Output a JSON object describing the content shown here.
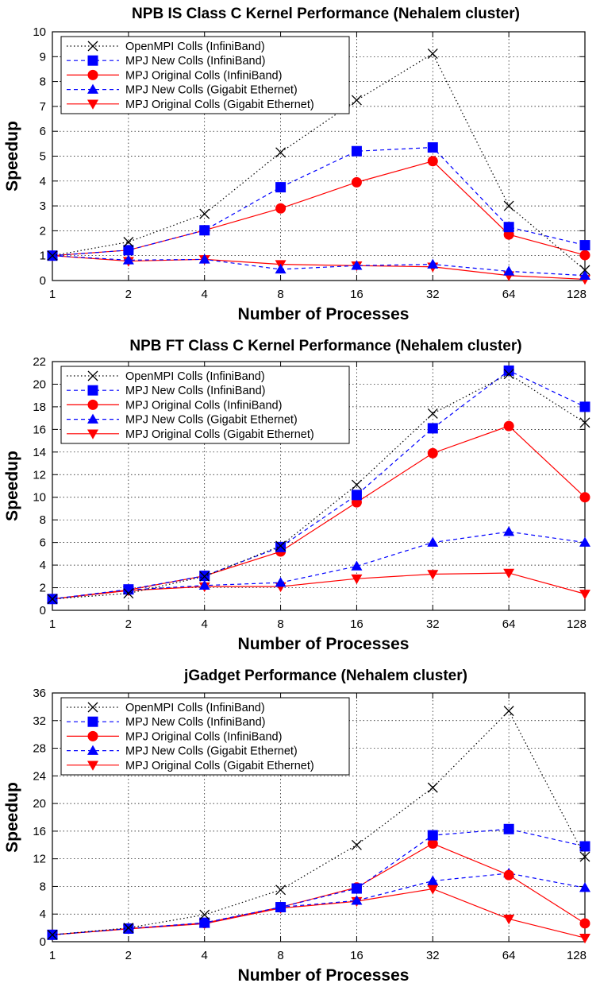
{
  "chart_data": [
    {
      "type": "line",
      "title": "NPB IS Class C Kernel Performance (Nehalem cluster)",
      "xlabel": "Number of Processes",
      "ylabel": "Speedup",
      "x_scale": "log2",
      "x": [
        1,
        2,
        4,
        8,
        16,
        32,
        64,
        128
      ],
      "ylim": [
        0,
        10
      ],
      "yticks": [
        0,
        1,
        2,
        3,
        4,
        5,
        6,
        7,
        8,
        9,
        10
      ],
      "grid": true,
      "legend_position": "top-left",
      "series": [
        {
          "name": "OpenMPI Colls (InfiniBand)",
          "values": [
            1,
            1.55,
            2.68,
            5.15,
            7.25,
            9.12,
            3.0,
            0.42
          ]
        },
        {
          "name": "MPJ New Colls (InfiniBand)",
          "values": [
            1,
            1.22,
            2.02,
            3.75,
            5.2,
            5.35,
            2.15,
            1.42
          ]
        },
        {
          "name": "MPJ Original Colls (InfiniBand)",
          "values": [
            1,
            1.22,
            2.02,
            2.9,
            3.95,
            4.8,
            1.85,
            1.02
          ]
        },
        {
          "name": "MPJ New Colls (Gigabit Ethernet)",
          "values": [
            1,
            0.82,
            0.85,
            0.45,
            0.6,
            0.65,
            0.37,
            0.2
          ]
        },
        {
          "name": "MPJ Original Colls (Gigabit Ethernet)",
          "values": [
            1,
            0.78,
            0.85,
            0.65,
            0.6,
            0.55,
            0.2,
            0.05
          ]
        }
      ]
    },
    {
      "type": "line",
      "title": "NPB FT Class C Kernel Performance (Nehalem cluster)",
      "xlabel": "Number of Processes",
      "ylabel": "Speedup",
      "x_scale": "log2",
      "x": [
        1,
        2,
        4,
        8,
        16,
        32,
        64,
        128
      ],
      "ylim": [
        0,
        22
      ],
      "yticks": [
        0,
        2,
        4,
        6,
        8,
        10,
        12,
        14,
        16,
        18,
        20,
        22
      ],
      "grid": true,
      "legend_position": "top-left",
      "series": [
        {
          "name": "OpenMPI Colls (InfiniBand)",
          "values": [
            1,
            1.5,
            3.0,
            5.7,
            11.1,
            17.4,
            20.9,
            16.6
          ]
        },
        {
          "name": "MPJ New Colls (InfiniBand)",
          "values": [
            1,
            1.85,
            3.05,
            5.6,
            10.2,
            16.1,
            21.2,
            18.0
          ]
        },
        {
          "name": "MPJ Original Colls (InfiniBand)",
          "values": [
            1,
            1.8,
            3.05,
            5.2,
            9.55,
            13.9,
            16.3,
            10.0
          ]
        },
        {
          "name": "MPJ New Colls (Gigabit Ethernet)",
          "values": [
            1,
            1.8,
            2.2,
            2.45,
            3.9,
            6.0,
            6.95,
            6.0
          ]
        },
        {
          "name": "MPJ Original Colls (Gigabit Ethernet)",
          "values": [
            1,
            1.75,
            2.1,
            2.1,
            2.8,
            3.2,
            3.3,
            1.45
          ]
        }
      ]
    },
    {
      "type": "line",
      "title": "jGadget Performance (Nehalem cluster)",
      "xlabel": "Number of Processes",
      "ylabel": "Speedup",
      "x_scale": "log2",
      "x": [
        1,
        2,
        4,
        8,
        16,
        32,
        64,
        128
      ],
      "ylim": [
        0,
        36
      ],
      "yticks": [
        0,
        4,
        8,
        12,
        16,
        20,
        24,
        28,
        32,
        36
      ],
      "grid": true,
      "legend_position": "top-left",
      "series": [
        {
          "name": "OpenMPI Colls (InfiniBand)",
          "values": [
            1,
            2.0,
            3.9,
            7.5,
            14.0,
            22.3,
            33.4,
            12.3
          ]
        },
        {
          "name": "MPJ New Colls (InfiniBand)",
          "values": [
            1,
            1.9,
            2.75,
            5.0,
            7.7,
            15.4,
            16.3,
            13.8
          ]
        },
        {
          "name": "MPJ Original Colls (InfiniBand)",
          "values": [
            1,
            1.9,
            2.7,
            5.0,
            7.85,
            14.2,
            9.65,
            2.65
          ]
        },
        {
          "name": "MPJ New Colls (Gigabit Ethernet)",
          "values": [
            1,
            1.9,
            2.65,
            5.0,
            5.95,
            8.8,
            9.9,
            7.8
          ]
        },
        {
          "name": "MPJ Original Colls (Gigabit Ethernet)",
          "values": [
            1,
            1.85,
            2.6,
            4.85,
            5.85,
            7.65,
            3.3,
            0.55
          ]
        }
      ]
    }
  ],
  "series_styles": [
    {
      "color": "#000000",
      "marker": "x",
      "line": "dotted"
    },
    {
      "color": "#0000ff",
      "marker": "square",
      "line": "dashed"
    },
    {
      "color": "#ff0000",
      "marker": "circle",
      "line": "solid"
    },
    {
      "color": "#0000ff",
      "marker": "triangle-up",
      "line": "dashed"
    },
    {
      "color": "#ff0000",
      "marker": "triangle-down",
      "line": "solid"
    }
  ]
}
